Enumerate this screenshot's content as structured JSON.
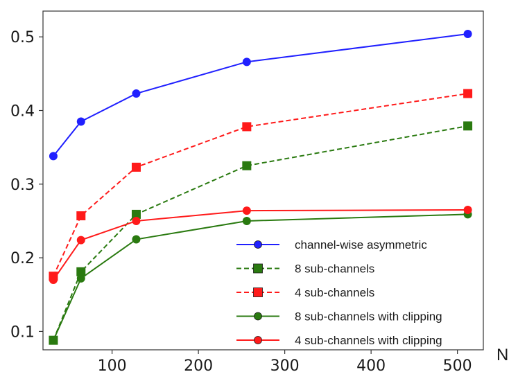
{
  "chart_data": {
    "type": "line",
    "title": "",
    "xlabel": "N",
    "ylabel": "",
    "xlim": [
      20,
      530
    ],
    "ylim": [
      0.075,
      0.535
    ],
    "xticks": [
      100,
      200,
      300,
      400,
      500
    ],
    "xtick_labels": [
      "100",
      "200",
      "300",
      "400",
      "500"
    ],
    "yticks": [
      0.1,
      0.2,
      0.3,
      0.4,
      0.5
    ],
    "ytick_labels": [
      "0.1",
      "0.2",
      "0.3",
      "0.4",
      "0.5"
    ],
    "grid": false,
    "legend_position": "lower-right",
    "series": [
      {
        "name": "channel-wise asymmetric",
        "color": "#2020ff",
        "dash": "solid",
        "marker": "circle",
        "x": [
          32,
          64,
          128,
          256,
          512
        ],
        "y": [
          0.338,
          0.385,
          0.423,
          0.466,
          0.504
        ]
      },
      {
        "name": "8 sub-channels",
        "color": "#2a7a10",
        "dash": "dashed",
        "marker": "square",
        "x": [
          32,
          64,
          128,
          256,
          512
        ],
        "y": [
          0.088,
          0.181,
          0.259,
          0.325,
          0.379
        ]
      },
      {
        "name": "4 sub-channels",
        "color": "#ff1a1a",
        "dash": "dashed",
        "marker": "square",
        "x": [
          32,
          64,
          128,
          256,
          512
        ],
        "y": [
          0.175,
          0.257,
          0.323,
          0.378,
          0.423
        ]
      },
      {
        "name": "8 sub-channels with clipping",
        "color": "#2a7a10",
        "dash": "solid",
        "marker": "circle",
        "x": [
          32,
          64,
          128,
          256,
          512
        ],
        "y": [
          0.088,
          0.172,
          0.225,
          0.25,
          0.259
        ]
      },
      {
        "name": "4 sub-channels with clipping",
        "color": "#ff1a1a",
        "dash": "solid",
        "marker": "circle",
        "x": [
          32,
          64,
          128,
          256,
          512
        ],
        "y": [
          0.17,
          0.224,
          0.25,
          0.264,
          0.265
        ]
      }
    ]
  }
}
